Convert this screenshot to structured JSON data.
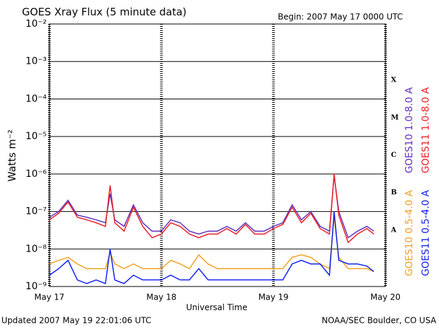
{
  "chart_data": {
    "type": "line",
    "title": "GOES Xray Flux (5 minute data)",
    "subtitle": "Begin:  2007 May 17 0000 UTC",
    "ylabel": "Watts m⁻²",
    "xlabel": "Universal Time",
    "footer_left": "Updated 2007 May 19 22:01:06 UTC",
    "footer_right": "NOAA/SEC Boulder, CO USA",
    "log_y": true,
    "grid": true,
    "class_labels": [
      "X",
      "M",
      "C",
      "B",
      "A"
    ],
    "xlim": [
      0,
      72
    ],
    "xticks": [
      {
        "value": 0,
        "label": "May 17"
      },
      {
        "value": 24,
        "label": "May 18"
      },
      {
        "value": 48,
        "label": "May 19"
      },
      {
        "value": 72,
        "label": "May 20"
      }
    ],
    "ylim": [
      1e-09,
      0.01
    ],
    "yticks": [
      {
        "value": 1e-09,
        "label": "10⁻⁹"
      },
      {
        "value": 1e-08,
        "label": "10⁻⁸"
      },
      {
        "value": 1e-07,
        "label": "10⁻⁷"
      },
      {
        "value": 1e-06,
        "label": "10⁻⁶"
      },
      {
        "value": 1e-05,
        "label": "10⁻⁵"
      },
      {
        "value": 0.0001,
        "label": "10⁻⁴"
      },
      {
        "value": 0.001,
        "label": "10⁻³"
      },
      {
        "value": 0.01,
        "label": "10⁻²"
      }
    ],
    "x": [
      0,
      2,
      4,
      6,
      8,
      10,
      12,
      13,
      14,
      16,
      18,
      20,
      22,
      24,
      26,
      28,
      30,
      32,
      34,
      36,
      38,
      40,
      42,
      44,
      46,
      48,
      50,
      52,
      54,
      56,
      58,
      60,
      61,
      62,
      64,
      66,
      68,
      69.5
    ],
    "series": [
      {
        "name": "GOES10 1.0-8.0 A",
        "color": "#6030c0",
        "values": [
          7e-08,
          1e-07,
          2e-07,
          8e-08,
          7e-08,
          6e-08,
          5e-08,
          3e-07,
          6e-08,
          4e-08,
          1.5e-07,
          5e-08,
          3e-08,
          3e-08,
          6e-08,
          5e-08,
          3e-08,
          2.5e-08,
          3e-08,
          3e-08,
          4e-08,
          3e-08,
          5e-08,
          3e-08,
          3e-08,
          4e-08,
          5e-08,
          1.5e-07,
          6e-08,
          1e-07,
          4e-08,
          3e-08,
          9e-07,
          1e-07,
          2e-08,
          3e-08,
          4e-08,
          3e-08
        ]
      },
      {
        "name": "GOES11 1.0-8.0 A",
        "color": "#ee1c24",
        "values": [
          6e-08,
          9e-08,
          1.8e-07,
          7e-08,
          6e-08,
          5e-08,
          4e-08,
          5e-07,
          5e-08,
          3e-08,
          1.3e-07,
          4e-08,
          2e-08,
          2.5e-08,
          5e-08,
          4e-08,
          2.5e-08,
          2e-08,
          2.5e-08,
          2.5e-08,
          3.5e-08,
          2.5e-08,
          4.5e-08,
          2.5e-08,
          2.5e-08,
          3.5e-08,
          4.5e-08,
          1.3e-07,
          5e-08,
          9e-08,
          3.5e-08,
          2.5e-08,
          1e-06,
          8e-08,
          1.5e-08,
          2.5e-08,
          3.5e-08,
          2.5e-08
        ]
      },
      {
        "name": "GOES10 0.5-4.0 A",
        "color": "#f0a020",
        "values": [
          4e-09,
          5e-09,
          6e-09,
          4e-09,
          3e-09,
          3e-09,
          3e-09,
          8e-09,
          4e-09,
          3e-09,
          4e-09,
          3e-09,
          3e-09,
          3e-09,
          5e-09,
          4e-09,
          3e-09,
          7e-09,
          4e-09,
          3e-09,
          3e-09,
          3e-09,
          3e-09,
          3e-09,
          3e-09,
          3e-09,
          3e-09,
          6e-09,
          7e-09,
          6e-09,
          4e-09,
          3e-09,
          7e-08,
          6e-09,
          3e-09,
          3e-09,
          3e-09,
          2.5e-09
        ]
      },
      {
        "name": "GOES11 0.5-4.0 A",
        "color": "#1020f0",
        "values": [
          2e-09,
          3e-09,
          5e-09,
          1.5e-09,
          1.2e-09,
          1.5e-09,
          1.2e-09,
          1e-08,
          1.5e-09,
          1.2e-09,
          2e-09,
          1.5e-09,
          1.5e-09,
          1.5e-09,
          2e-09,
          1.5e-09,
          1.5e-09,
          3e-09,
          1.5e-09,
          1.5e-09,
          1.5e-09,
          1.5e-09,
          1.5e-09,
          1.5e-09,
          1.5e-09,
          1.5e-09,
          1.5e-09,
          4e-09,
          5e-09,
          4e-09,
          4e-09,
          2e-09,
          1e-07,
          5e-09,
          4e-09,
          4e-09,
          3.5e-09,
          2.5e-09
        ]
      }
    ]
  }
}
